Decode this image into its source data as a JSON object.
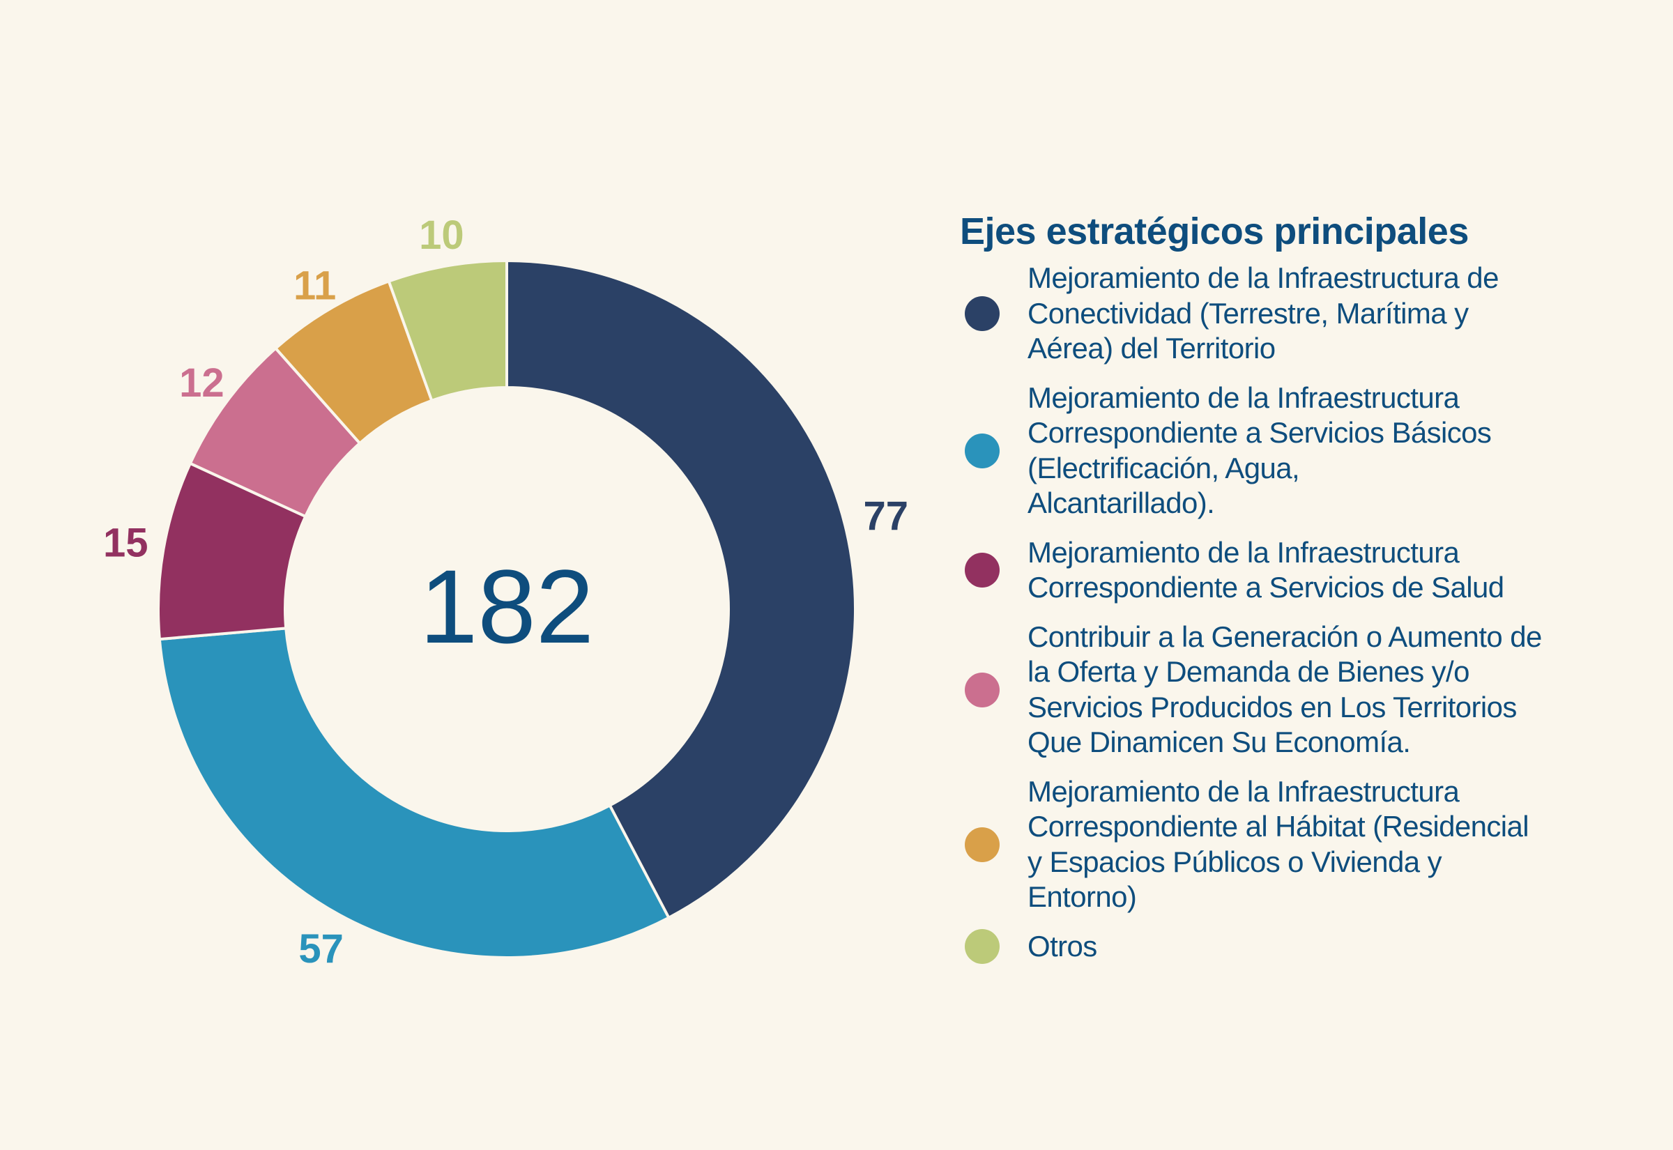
{
  "chart_data": {
    "type": "pie",
    "subtype": "donut",
    "title": "Ejes estratégicos principales",
    "center_label": "182",
    "total": 182,
    "start_angle": "12 o'clock, clockwise",
    "legend_position": "right",
    "categories": [
      "Mejoramiento de la Infraestructura de Conectividad (Terrestre, Marítima y Aérea) del Territorio",
      "Mejoramiento de la Infraestructura Correspondiente a Servicios Básicos (Electrificación, Agua, Alcantarillado).",
      "Mejoramiento de la Infraestructura Correspondiente a Servicios de Salud",
      "Contribuir a la Generación o Aumento de la Oferta y Demanda de Bienes y/o Servicios Producidos en Los Territorios Que Dinamicen Su Economía.",
      "Mejoramiento de la Infraestructura Correspondiente al Hábitat (Residencial y Espacios Públicos o Vivienda y Entorno)",
      "Otros"
    ],
    "values": [
      77,
      57,
      15,
      12,
      11,
      10
    ],
    "data_labels": [
      "77",
      "57",
      "15",
      "12",
      "11",
      "10"
    ],
    "colors": [
      "#2b4166",
      "#2a93bb",
      "#923160",
      "#cb6f8f",
      "#d9a049",
      "#bcca79"
    ]
  },
  "legend": {
    "title": "Ejes estratégicos principales",
    "items": [
      {
        "lines": [
          "Mejoramiento de la Infraestructura de",
          "Conectividad (Terrestre, Marítima y",
          "Aérea) del Territorio"
        ],
        "color": "#2b4166"
      },
      {
        "lines": [
          "Mejoramiento de la Infraestructura",
          "Correspondiente a Servicios Básicos",
          "(Electrificación, Agua,",
          "Alcantarillado)."
        ],
        "color": "#2a93bb"
      },
      {
        "lines": [
          "Mejoramiento de la Infraestructura",
          "Correspondiente a Servicios de Salud"
        ],
        "color": "#923160"
      },
      {
        "lines": [
          "Contribuir a la Generación o Aumento de",
          "la Oferta y Demanda de Bienes y/o",
          "Servicios Producidos en Los Territorios",
          "Que Dinamicen Su Economía."
        ],
        "color": "#cb6f8f"
      },
      {
        "lines": [
          "Mejoramiento de la Infraestructura",
          "Correspondiente al Hábitat (Residencial",
          "y Espacios Públicos o Vivienda y",
          "Entorno)"
        ],
        "color": "#d9a049"
      },
      {
        "lines": [
          "Otros"
        ],
        "color": "#bcca79"
      }
    ]
  },
  "theme": {
    "background": "#faf6ec",
    "text_color": "#0e4d7d",
    "separator_color": "#faf6ec"
  }
}
